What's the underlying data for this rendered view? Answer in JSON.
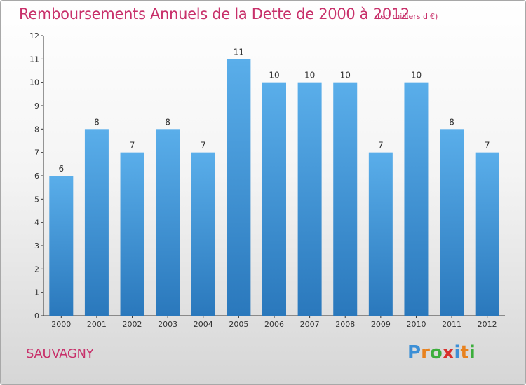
{
  "title": "Remboursements Annuels de la Dette de 2000 à 2012",
  "unit": "(en milliers d'€)",
  "place": "SAUVAGNY",
  "logo": {
    "letters": [
      "P",
      "r",
      "o",
      "x",
      "i",
      "t",
      "i"
    ],
    "colors": [
      "#3c8fd6",
      "#e8821e",
      "#3cae3c",
      "#d8302c",
      "#3c8fd6",
      "#e8821e",
      "#3cae3c"
    ]
  },
  "colors": {
    "bar_top": "#5aaeea",
    "bar_bottom": "#2a78bc",
    "text": "#c8306a",
    "axis": "#333333"
  },
  "chart_data": {
    "type": "bar",
    "title": "Remboursements Annuels de la Dette de 2000 à 2012",
    "categories": [
      "2000",
      "2001",
      "2002",
      "2003",
      "2004",
      "2005",
      "2006",
      "2007",
      "2008",
      "2009",
      "2010",
      "2011",
      "2012"
    ],
    "values": [
      6,
      8,
      7,
      8,
      7,
      11,
      10,
      10,
      10,
      7,
      10,
      8,
      7
    ],
    "ylim": [
      0,
      12
    ],
    "yticks": [
      0,
      1,
      2,
      3,
      4,
      5,
      6,
      7,
      8,
      9,
      10,
      11,
      12
    ],
    "xlabel": "",
    "ylabel": "",
    "grid": false
  }
}
